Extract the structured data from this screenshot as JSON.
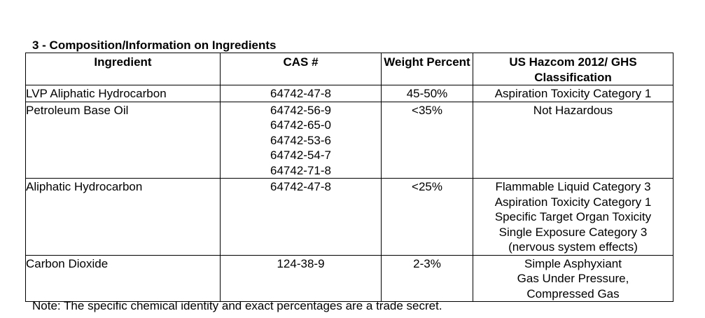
{
  "section_title": "3 - Composition/Information on Ingredients",
  "table": {
    "headers": [
      {
        "lines": [
          "Ingredient"
        ]
      },
      {
        "lines": [
          "CAS #"
        ]
      },
      {
        "lines": [
          "Weight Percent"
        ]
      },
      {
        "lines": [
          "US Hazcom 2012/ GHS",
          "Classification"
        ]
      }
    ],
    "rows": [
      {
        "ingredient": "LVP Aliphatic Hydrocarbon",
        "cas": [
          "64742-47-8"
        ],
        "weight": "45-50%",
        "classification": [
          "Aspiration Toxicity Category 1"
        ]
      },
      {
        "ingredient": "Petroleum Base Oil",
        "cas": [
          "64742-56-9",
          "64742-65-0",
          "64742-53-6",
          "64742-54-7",
          "64742-71-8"
        ],
        "weight": "<35%",
        "classification": [
          "Not Hazardous"
        ]
      },
      {
        "ingredient": "Aliphatic Hydrocarbon",
        "cas": [
          "64742-47-8"
        ],
        "weight": "<25%",
        "classification": [
          "Flammable Liquid Category 3",
          "Aspiration Toxicity Category 1",
          "Specific Target Organ Toxicity",
          "Single Exposure Category 3",
          "(nervous system effects)"
        ]
      },
      {
        "ingredient": "Carbon Dioxide",
        "cas": [
          "124-38-9"
        ],
        "weight": "2-3%",
        "classification": [
          "Simple Asphyxiant",
          "Gas Under Pressure,",
          "Compressed Gas"
        ]
      }
    ]
  },
  "note": "Note: The specific chemical identity and exact percentages are a trade secret."
}
